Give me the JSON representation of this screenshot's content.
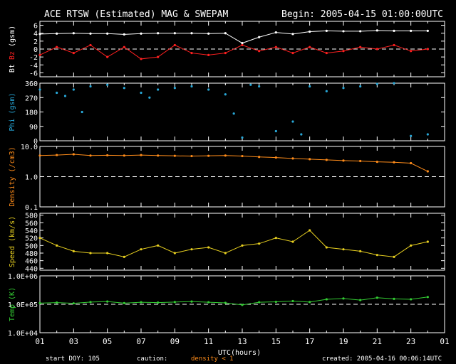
{
  "header": {
    "title": "ACE RTSW (Estimated) MAG & SWEPAM",
    "begin": "Begin: 2005-04-15 01:00:00UTC"
  },
  "footer": {
    "start_doy": "start DOY: 105",
    "caution_label": "caution:",
    "caution_value": "density < 1",
    "created": "created: 2005-04-16 00:06:14UTC"
  },
  "colors": {
    "bt": "#ffffff",
    "bz": "#ff2020",
    "phi": "#28a8d8",
    "density": "#ff8c1a",
    "speed": "#e8d020",
    "temp": "#33cc33",
    "axis": "#ffffff"
  },
  "chart_data": [
    {
      "type": "line",
      "panel": "bt_bz",
      "ylabel_parts": [
        "Bt",
        "Bz",
        "(gsm)"
      ],
      "yticks": [
        "6",
        "4",
        "2",
        "0",
        "-2",
        "-4",
        "-6"
      ],
      "ylim": [
        -7,
        7
      ],
      "xlim": [
        1,
        25
      ],
      "dashed_reference": 0,
      "series": [
        {
          "name": "Bt",
          "x": [
            1,
            2,
            3,
            4,
            5,
            6,
            7,
            8,
            9,
            10,
            11,
            12,
            13,
            14,
            15,
            16,
            17,
            18,
            19,
            20,
            21,
            22,
            23,
            24
          ],
          "values": [
            3.8,
            3.9,
            4.0,
            3.9,
            3.9,
            3.7,
            3.9,
            4.0,
            4.0,
            4.0,
            3.9,
            4.0,
            1.5,
            3.0,
            4.2,
            3.8,
            4.4,
            4.6,
            4.5,
            4.5,
            4.7,
            4.6,
            4.6,
            4.6
          ]
        },
        {
          "name": "Bz",
          "x": [
            1,
            2,
            3,
            4,
            5,
            6,
            7,
            8,
            9,
            10,
            11,
            12,
            13,
            14,
            15,
            16,
            17,
            18,
            19,
            20,
            21,
            22,
            23,
            24
          ],
          "values": [
            -1.5,
            0.5,
            -1.0,
            1.0,
            -2.0,
            0.5,
            -2.5,
            -2.0,
            1.0,
            -1.0,
            -1.5,
            -1.0,
            1.0,
            -0.5,
            0.5,
            -1.0,
            0.5,
            -1.0,
            -0.5,
            0.5,
            0.0,
            1.0,
            -0.5,
            0.0
          ]
        }
      ]
    },
    {
      "type": "scatter",
      "panel": "phi",
      "ylabel": "Phi (gsm)",
      "yticks": [
        "360",
        "270",
        "180",
        "90",
        "0"
      ],
      "ylim": [
        0,
        360
      ],
      "xlim": [
        1,
        25
      ],
      "series": [
        {
          "name": "Phi",
          "x": [
            1,
            2,
            2.5,
            3,
            3.5,
            4,
            5,
            6,
            7,
            7.5,
            8,
            9,
            10,
            11,
            12,
            12.5,
            13,
            13.5,
            14,
            15,
            16,
            16.5,
            17,
            18,
            19,
            20,
            21,
            22,
            23,
            24
          ],
          "values": [
            320,
            300,
            280,
            320,
            180,
            340,
            350,
            330,
            300,
            270,
            320,
            330,
            340,
            320,
            290,
            170,
            20,
            350,
            340,
            60,
            120,
            40,
            340,
            310,
            330,
            340,
            355,
            360,
            30,
            40
          ]
        }
      ]
    },
    {
      "type": "line",
      "panel": "density",
      "ylabel": "Density (/cm3)",
      "yticks": [
        "10.0",
        "1.0",
        "0.1"
      ],
      "ylim": [
        0.1,
        10
      ],
      "log": true,
      "xlim": [
        1,
        25
      ],
      "dashed_reference": 1.0,
      "series": [
        {
          "name": "Density",
          "x": [
            1,
            2,
            3,
            4,
            5,
            6,
            7,
            8,
            9,
            10,
            11,
            12,
            13,
            14,
            15,
            16,
            17,
            18,
            19,
            20,
            21,
            22,
            23,
            24
          ],
          "values": [
            5.0,
            5.2,
            5.5,
            5.0,
            5.1,
            5.0,
            5.2,
            5.0,
            4.9,
            4.8,
            4.9,
            5.0,
            4.8,
            4.5,
            4.3,
            4.0,
            3.8,
            3.6,
            3.4,
            3.3,
            3.1,
            3.0,
            2.8,
            1.5
          ]
        }
      ]
    },
    {
      "type": "line",
      "panel": "speed",
      "ylabel": "Speed (km/s)",
      "yticks": [
        "580",
        "560",
        "540",
        "520",
        "500",
        "480",
        "460",
        "440"
      ],
      "ylim": [
        435,
        585
      ],
      "xlim": [
        1,
        25
      ],
      "series": [
        {
          "name": "Speed",
          "x": [
            1,
            2,
            3,
            4,
            5,
            6,
            7,
            8,
            9,
            10,
            11,
            12,
            13,
            14,
            15,
            16,
            17,
            18,
            19,
            20,
            21,
            22,
            23,
            24
          ],
          "values": [
            520,
            500,
            485,
            480,
            480,
            470,
            490,
            500,
            480,
            490,
            495,
            480,
            500,
            505,
            520,
            510,
            540,
            495,
            490,
            485,
            475,
            470,
            500,
            510
          ]
        }
      ]
    },
    {
      "type": "line",
      "panel": "temp",
      "ylabel": "Temp (K)",
      "yticks": [
        "1.0E+06",
        "1.0E+05",
        "1.0E+04"
      ],
      "ylim": [
        10000,
        1000000
      ],
      "log": true,
      "xlim": [
        1,
        25
      ],
      "dashed_reference": 100000,
      "series": [
        {
          "name": "Temp",
          "x": [
            1,
            2,
            3,
            4,
            5,
            6,
            7,
            8,
            9,
            10,
            11,
            12,
            13,
            14,
            15,
            16,
            17,
            18,
            19,
            20,
            21,
            22,
            23,
            24
          ],
          "values": [
            110000,
            115000,
            108000,
            120000,
            125000,
            110000,
            118000,
            115000,
            120000,
            125000,
            118000,
            112000,
            95000,
            118000,
            122000,
            130000,
            120000,
            150000,
            160000,
            140000,
            170000,
            155000,
            150000,
            180000
          ]
        }
      ]
    }
  ],
  "x_axis": {
    "ticks": [
      "01",
      "03",
      "05",
      "07",
      "09",
      "11",
      "13",
      "15",
      "17",
      "19",
      "21",
      "23",
      "01"
    ],
    "label": "UTC(hours)"
  }
}
